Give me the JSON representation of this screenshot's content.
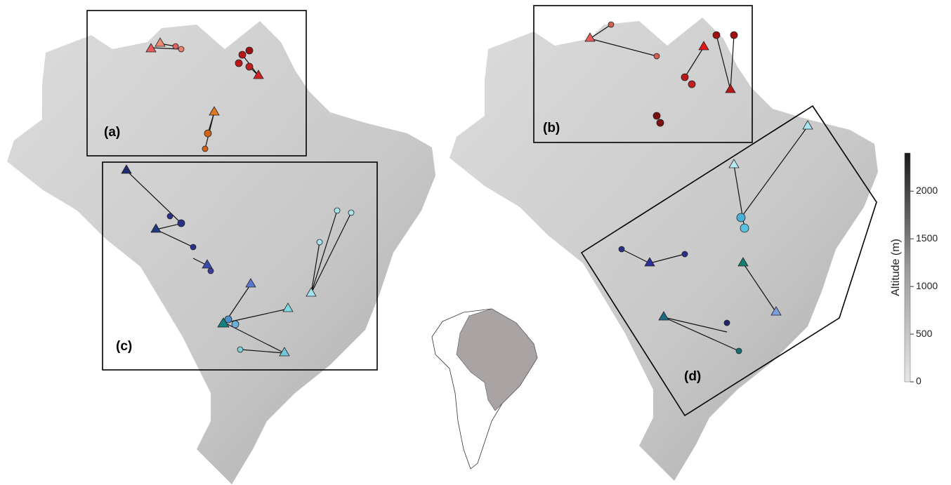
{
  "panels": [
    "(a)",
    "(b)",
    "(c)",
    "(d)"
  ],
  "colorbar": {
    "label": "Altitude (m)",
    "range": [
      0,
      2400
    ],
    "ticks": [
      0,
      500,
      1000,
      1500,
      2000
    ]
  }
}
